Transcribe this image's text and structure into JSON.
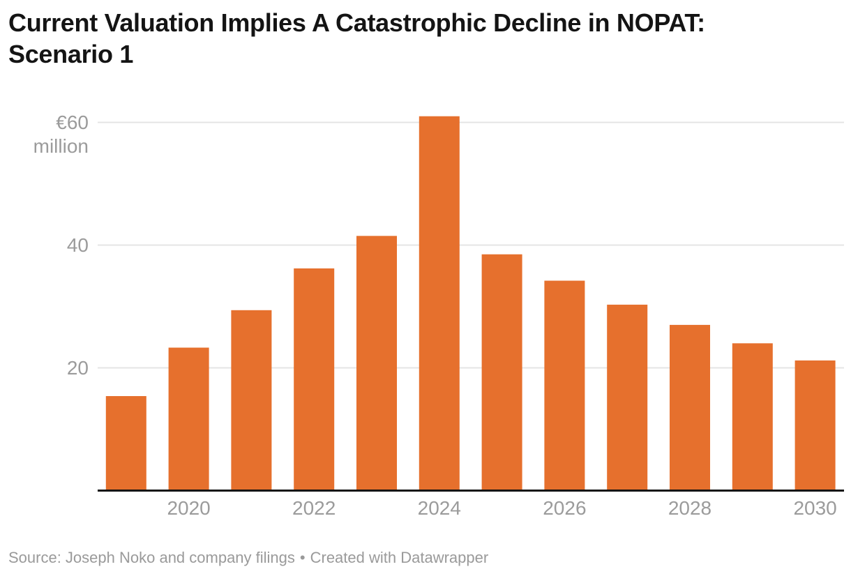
{
  "header": {
    "title": "Current Valuation Implies A Catastrophic Decline in NOPAT:\nScenario 1"
  },
  "chart_data": {
    "type": "bar",
    "title": "Current Valuation Implies A Catastrophic Decline in NOPAT: Scenario 1",
    "categories": [
      "2019",
      "2020",
      "2021",
      "2022",
      "2023",
      "2024",
      "2025",
      "2026",
      "2027",
      "2028",
      "2029",
      "2030"
    ],
    "values": [
      15.4,
      23.3,
      29.4,
      36.2,
      41.5,
      61,
      38.5,
      34.2,
      30.3,
      27,
      24,
      21.2
    ],
    "unit": "€ million",
    "xlabel": "",
    "ylabel": "",
    "ylim": [
      0,
      62
    ],
    "grid": "horizontal",
    "legend": "none",
    "y_ticks": [
      {
        "value": 20,
        "label": "20"
      },
      {
        "value": 40,
        "label": "40"
      },
      {
        "value": 60,
        "label": "€60 million"
      }
    ],
    "x_tick_labels": [
      "2020",
      "2022",
      "2024",
      "2026",
      "2028",
      "2030"
    ],
    "bar_color": "#E6702D"
  },
  "footer": {
    "source": "Source: Joseph Noko and company filings",
    "separator": "•",
    "credit": "Created with Datawrapper"
  },
  "colors": {
    "bar": "#E6702D",
    "gridline": "#E4E4E4",
    "baseline": "#141414",
    "axis_label": "#9B9B9B",
    "title": "#141414",
    "source_text": "#9A9A9A",
    "background": "#FFFFFF"
  }
}
